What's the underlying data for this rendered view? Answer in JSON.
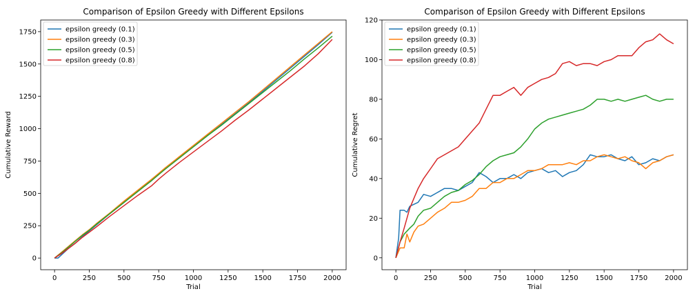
{
  "colors": {
    "series": [
      "#1f77b4",
      "#ff7f0e",
      "#2ca02c",
      "#d62728"
    ]
  },
  "chart_data": [
    {
      "type": "line",
      "title": "Comparison of Epsilon Greedy with Different Epsilons",
      "xlabel": "Trial",
      "ylabel": "Cumulative Reward",
      "xlim": [
        -100,
        2100
      ],
      "ylim": [
        -90,
        1840
      ],
      "xticks": [
        0,
        250,
        500,
        750,
        1000,
        1250,
        1500,
        1750,
        2000
      ],
      "yticks": [
        0,
        250,
        500,
        750,
        1000,
        1250,
        1500,
        1750
      ],
      "legend": "top-left",
      "series": [
        {
          "name": "epsilon greedy (0.1)",
          "x": [
            0,
            25,
            50,
            100,
            150,
            200,
            250,
            300,
            400,
            500,
            600,
            700,
            750,
            800,
            900,
            1000,
            1100,
            1200,
            1300,
            1400,
            1500,
            1600,
            1700,
            1800,
            1900,
            2000
          ],
          "y": [
            0,
            0,
            25,
            75,
            115,
            165,
            210,
            255,
            345,
            430,
            520,
            600,
            650,
            690,
            780,
            860,
            945,
            1030,
            1115,
            1200,
            1290,
            1380,
            1470,
            1560,
            1650,
            1745
          ]
        },
        {
          "name": "epsilon greedy (0.3)",
          "x": [
            0,
            50,
            100,
            150,
            200,
            250,
            300,
            400,
            500,
            600,
            700,
            750,
            800,
            900,
            1000,
            1100,
            1200,
            1300,
            1400,
            1500,
            1600,
            1700,
            1800,
            1900,
            2000
          ],
          "y": [
            0,
            45,
            90,
            135,
            180,
            220,
            265,
            350,
            440,
            525,
            610,
            655,
            700,
            785,
            870,
            955,
            1040,
            1125,
            1210,
            1300,
            1390,
            1480,
            1570,
            1660,
            1750
          ]
        },
        {
          "name": "epsilon greedy (0.5)",
          "x": [
            0,
            50,
            100,
            150,
            200,
            250,
            300,
            400,
            500,
            600,
            700,
            750,
            800,
            900,
            1000,
            1100,
            1200,
            1300,
            1400,
            1500,
            1600,
            1700,
            1800,
            1900,
            2000
          ],
          "y": [
            0,
            40,
            85,
            130,
            175,
            215,
            260,
            345,
            430,
            515,
            600,
            645,
            690,
            775,
            860,
            945,
            1025,
            1110,
            1195,
            1280,
            1365,
            1450,
            1540,
            1625,
            1715
          ]
        },
        {
          "name": "epsilon greedy (0.8)",
          "x": [
            0,
            50,
            100,
            150,
            200,
            250,
            300,
            400,
            500,
            600,
            700,
            750,
            800,
            900,
            1000,
            1100,
            1200,
            1300,
            1400,
            1500,
            1600,
            1700,
            1800,
            1900,
            2000
          ],
          "y": [
            0,
            35,
            75,
            115,
            160,
            200,
            240,
            325,
            405,
            485,
            560,
            610,
            655,
            740,
            820,
            900,
            980,
            1065,
            1145,
            1230,
            1315,
            1400,
            1485,
            1580,
            1690
          ]
        }
      ]
    },
    {
      "type": "line",
      "title": "Comparison of Epsilon Greedy with Different Epsilons",
      "xlabel": "Trial",
      "ylabel": "Cumulative Regret",
      "xlim": [
        -100,
        2100
      ],
      "ylim": [
        -6,
        120
      ],
      "xticks": [
        0,
        250,
        500,
        750,
        1000,
        1250,
        1500,
        1750,
        2000
      ],
      "yticks": [
        0,
        20,
        40,
        60,
        80,
        100,
        120
      ],
      "legend": "top-left",
      "series": [
        {
          "name": "epsilon greedy (0.1)",
          "x": [
            0,
            20,
            30,
            60,
            80,
            100,
            130,
            160,
            200,
            250,
            300,
            350,
            400,
            450,
            500,
            550,
            600,
            650,
            700,
            750,
            800,
            850,
            900,
            950,
            1000,
            1050,
            1100,
            1150,
            1200,
            1250,
            1300,
            1350,
            1400,
            1450,
            1500,
            1550,
            1600,
            1650,
            1700,
            1750,
            1800,
            1850,
            1900,
            1950,
            2000
          ],
          "y": [
            0,
            10,
            24,
            24,
            23,
            26,
            27,
            28,
            32,
            31,
            33,
            35,
            35,
            34,
            36,
            38,
            43,
            41,
            38,
            40,
            40,
            42,
            40,
            43,
            44,
            45,
            43,
            44,
            41,
            43,
            44,
            47,
            52,
            51,
            51,
            52,
            50,
            49,
            51,
            47,
            48,
            50,
            49,
            51,
            52
          ]
        },
        {
          "name": "epsilon greedy (0.3)",
          "x": [
            0,
            30,
            60,
            80,
            100,
            130,
            160,
            200,
            250,
            300,
            350,
            400,
            450,
            500,
            550,
            600,
            650,
            700,
            750,
            800,
            850,
            900,
            950,
            1000,
            1050,
            1100,
            1150,
            1200,
            1250,
            1300,
            1350,
            1400,
            1450,
            1500,
            1550,
            1600,
            1650,
            1700,
            1750,
            1800,
            1850,
            1900,
            1950,
            2000
          ],
          "y": [
            0,
            5,
            5,
            12,
            8,
            13,
            16,
            17,
            20,
            23,
            25,
            28,
            28,
            29,
            31,
            35,
            35,
            38,
            38,
            40,
            40,
            42,
            44,
            44,
            45,
            47,
            47,
            47,
            48,
            47,
            49,
            49,
            51,
            52,
            51,
            50,
            51,
            49,
            48,
            45,
            48,
            49,
            51,
            52
          ]
        },
        {
          "name": "epsilon greedy (0.5)",
          "x": [
            0,
            30,
            60,
            100,
            130,
            160,
            200,
            250,
            300,
            350,
            400,
            450,
            500,
            550,
            600,
            650,
            700,
            750,
            800,
            850,
            900,
            950,
            1000,
            1050,
            1100,
            1150,
            1200,
            1250,
            1300,
            1350,
            1400,
            1450,
            1500,
            1550,
            1600,
            1650,
            1700,
            1750,
            1800,
            1850,
            1900,
            1950,
            2000
          ],
          "y": [
            0,
            8,
            12,
            15,
            17,
            21,
            24,
            25,
            28,
            31,
            33,
            34,
            37,
            39,
            42,
            46,
            49,
            51,
            52,
            53,
            56,
            60,
            65,
            68,
            70,
            71,
            72,
            73,
            74,
            75,
            77,
            80,
            80,
            79,
            80,
            79,
            80,
            81,
            82,
            80,
            79,
            80,
            80
          ]
        },
        {
          "name": "epsilon greedy (0.8)",
          "x": [
            0,
            30,
            60,
            100,
            130,
            160,
            200,
            250,
            300,
            350,
            400,
            450,
            500,
            550,
            600,
            650,
            700,
            750,
            800,
            850,
            900,
            950,
            1000,
            1050,
            1100,
            1150,
            1200,
            1250,
            1300,
            1350,
            1400,
            1450,
            1500,
            1550,
            1600,
            1650,
            1700,
            1750,
            1800,
            1850,
            1900,
            1950,
            2000
          ],
          "y": [
            0,
            8,
            15,
            25,
            30,
            35,
            40,
            45,
            50,
            52,
            54,
            56,
            60,
            64,
            68,
            75,
            82,
            82,
            84,
            86,
            82,
            86,
            88,
            90,
            91,
            93,
            98,
            99,
            97,
            98,
            98,
            97,
            99,
            100,
            102,
            102,
            102,
            106,
            109,
            110,
            113,
            110,
            108
          ]
        }
      ]
    }
  ]
}
